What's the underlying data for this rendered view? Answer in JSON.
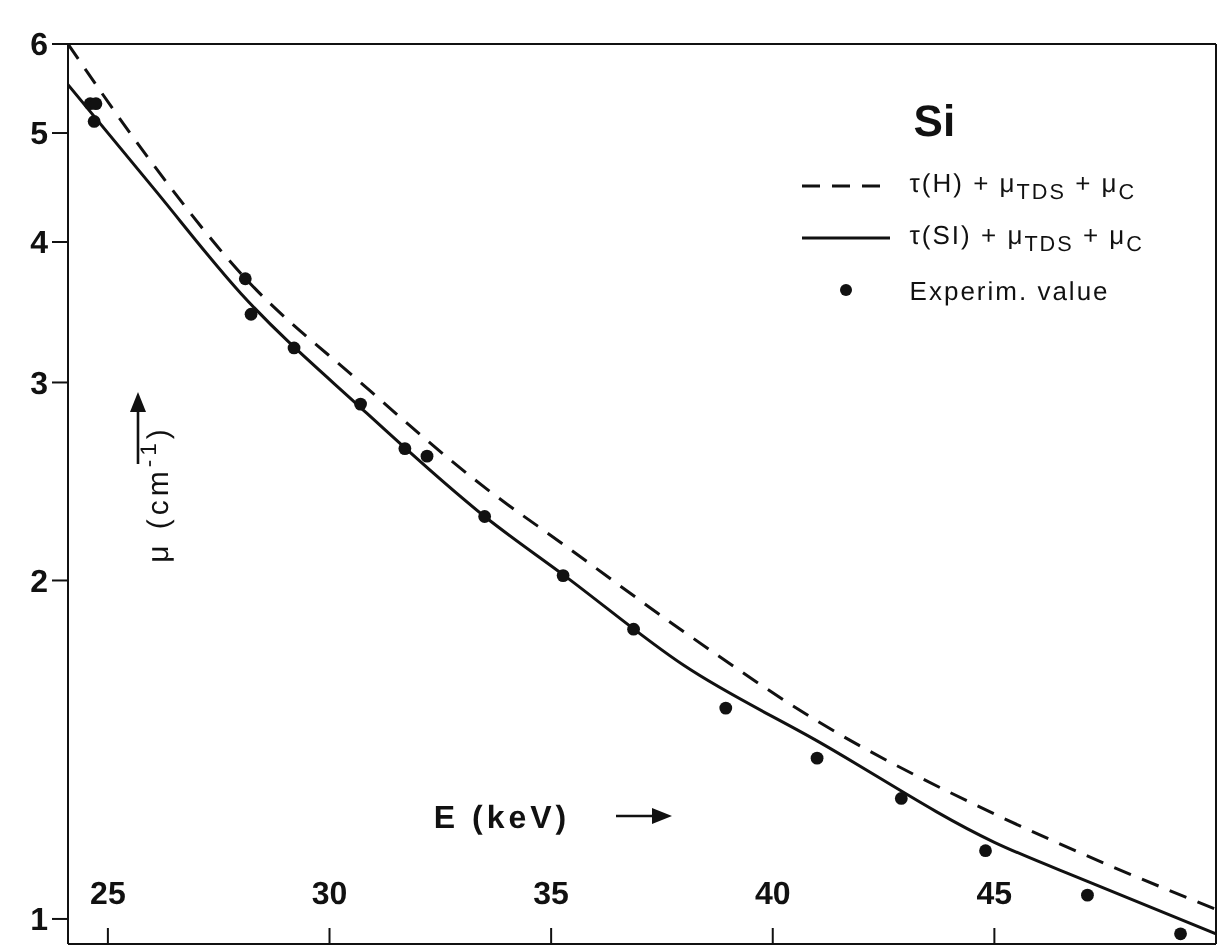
{
  "chart_data": {
    "type": "line",
    "legend_title": "Si",
    "xlabel": "E (keV)",
    "ylabel": "μ (cm$^{-1}$)",
    "xlim": [
      24.1,
      50
    ],
    "xticks": [
      25,
      30,
      35,
      40,
      45
    ],
    "ylim": [
      0.95,
      6
    ],
    "yticks": [
      1,
      2,
      3,
      4,
      5,
      6
    ],
    "log": "y",
    "legend": "top right",
    "series": [
      {
        "name": "τ(H) + μ$_{TDS}$ + μ$_{C}$",
        "line_style": "dashed",
        "marker": "none",
        "color": "#111111",
        "x": [
          24.1,
          26,
          28,
          30.7,
          33.5,
          35.3,
          38,
          41,
          45,
          47.5,
          50
        ],
        "values": [
          6.0,
          4.7,
          3.75,
          3.0,
          2.42,
          2.15,
          1.8,
          1.5,
          1.24,
          1.12,
          1.02
        ]
      },
      {
        "name": "τ(SI) + μ$_{TDS}$ + μ$_{C}$",
        "line_style": "solid",
        "marker": "none",
        "color": "#111111",
        "x": [
          24.1,
          26,
          28,
          30.7,
          33.5,
          35.3,
          38,
          41,
          45,
          47.1,
          50
        ],
        "values": [
          5.52,
          4.48,
          3.6,
          2.85,
          2.28,
          2.02,
          1.68,
          1.44,
          1.17,
          1.08,
          0.97
        ]
      },
      {
        "name": "Experim. value",
        "type": "scatter",
        "marker": "circle",
        "color": "#111111",
        "x": [
          24.6,
          24.73,
          24.69,
          28.1,
          28.23,
          29.2,
          30.7,
          31.7,
          32.2,
          33.5,
          35.27,
          36.86,
          38.94,
          41.0,
          42.9,
          44.8,
          47.1,
          49.2
        ],
        "values": [
          5.31,
          5.31,
          5.12,
          3.71,
          3.45,
          3.22,
          2.87,
          2.62,
          2.58,
          2.28,
          2.02,
          1.81,
          1.54,
          1.39,
          1.28,
          1.15,
          1.05,
          0.97
        ]
      }
    ]
  }
}
